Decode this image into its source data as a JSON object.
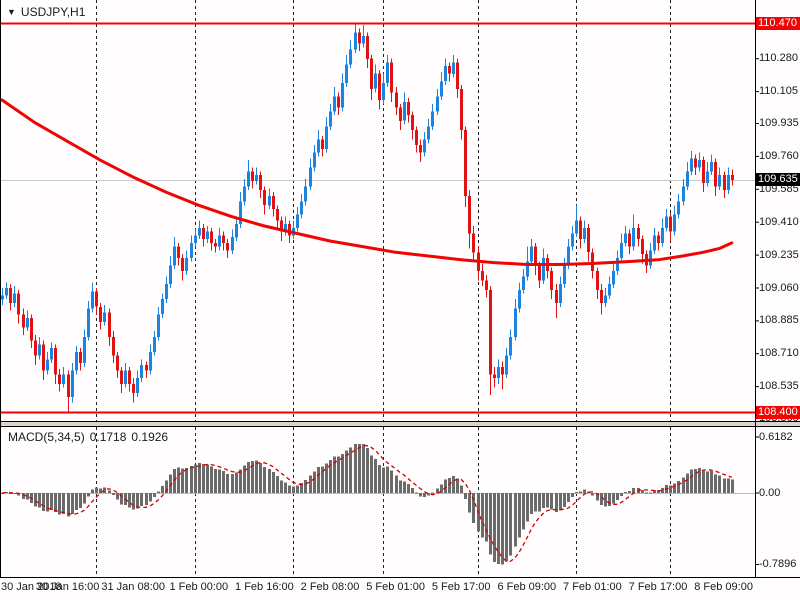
{
  "header": {
    "symbol": "USDJPY,H1",
    "dropdown_icon": "▼"
  },
  "colors": {
    "background": "#fffdfd",
    "bull": "#1b84e0",
    "bear": "#e11212",
    "ma_line": "#f00404",
    "hline": "#f00404",
    "hline_tag_bg": "#f00404",
    "current_tag_bg": "#000000",
    "histogram": "#6b6b6b",
    "signal_line": "#d40000",
    "separator": "#222222",
    "current_price_line": "#c8c8c8",
    "axis_text": "#1a1a1a"
  },
  "chart_data": {
    "type": "candlestick",
    "symbol": "USDJPY",
    "timeframe": "H1",
    "levels": {
      "upper": 110.47,
      "upper_label": "110.470",
      "lower": 108.4,
      "lower_label": "108.400",
      "current": 109.635,
      "current_label": "109.635"
    },
    "price_axis_ticks": [
      "110.455",
      "110.280",
      "110.105",
      "109.935",
      "109.760",
      "109.585",
      "109.410",
      "109.235",
      "109.060",
      "108.885",
      "108.710",
      "108.535",
      "108.365"
    ],
    "time_labels": [
      {
        "i": 1,
        "text": "30 Jan 2018",
        "align": "left"
      },
      {
        "i": 16,
        "text": "30 Jan 16:00"
      },
      {
        "i": 32,
        "text": "31 Jan 08:00"
      },
      {
        "i": 48,
        "text": "1 Feb 00:00"
      },
      {
        "i": 64,
        "text": "1 Feb 16:00"
      },
      {
        "i": 80,
        "text": "2 Feb 08:00"
      },
      {
        "i": 96,
        "text": "5 Feb 01:00"
      },
      {
        "i": 112,
        "text": "5 Feb 17:00"
      },
      {
        "i": 128,
        "text": "6 Feb 09:00"
      },
      {
        "i": 144,
        "text": "7 Feb 01:00"
      },
      {
        "i": 160,
        "text": "7 Feb 17:00"
      },
      {
        "i": 176,
        "text": "8 Feb 09:00"
      }
    ],
    "day_separators": [
      23,
      47,
      71,
      93,
      116,
      140,
      163
    ],
    "first_open": 109.0,
    "candles": [
      [
        109.02,
        0.04,
        0.03
      ],
      [
        109.06,
        0.03,
        0.02
      ],
      [
        108.98,
        0.02,
        0.04
      ],
      [
        109.03,
        0.04,
        0.02
      ],
      [
        108.92,
        0.02,
        0.05
      ],
      [
        108.85,
        0.03,
        0.04
      ],
      [
        108.9,
        0.04,
        0.02
      ],
      [
        108.78,
        0.02,
        0.04
      ],
      [
        108.7,
        0.03,
        0.05
      ],
      [
        108.76,
        0.04,
        0.02
      ],
      [
        108.62,
        0.02,
        0.05
      ],
      [
        108.68,
        0.04,
        0.02
      ],
      [
        108.74,
        0.03,
        0.02
      ],
      [
        108.6,
        0.02,
        0.05
      ],
      [
        108.55,
        0.03,
        0.04
      ],
      [
        108.6,
        0.04,
        0.02
      ],
      [
        108.48,
        0.02,
        0.08
      ],
      [
        108.62,
        0.04,
        0.03
      ],
      [
        108.72,
        0.03,
        0.02
      ],
      [
        108.66,
        0.02,
        0.04
      ],
      [
        108.8,
        0.04,
        0.02
      ],
      [
        108.95,
        0.04,
        0.02
      ],
      [
        109.04,
        0.05,
        0.02
      ],
      [
        108.96,
        0.02,
        0.04
      ],
      [
        108.88,
        0.02,
        0.04
      ],
      [
        108.93,
        0.04,
        0.02
      ],
      [
        108.8,
        0.02,
        0.05
      ],
      [
        108.7,
        0.03,
        0.04
      ],
      [
        108.62,
        0.02,
        0.04
      ],
      [
        108.55,
        0.02,
        0.05
      ],
      [
        108.62,
        0.04,
        0.02
      ],
      [
        108.55,
        0.02,
        0.04
      ],
      [
        108.5,
        0.03,
        0.05
      ],
      [
        108.58,
        0.04,
        0.02
      ],
      [
        108.65,
        0.03,
        0.02
      ],
      [
        108.62,
        0.02,
        0.04
      ],
      [
        108.72,
        0.04,
        0.02
      ],
      [
        108.8,
        0.03,
        0.02
      ],
      [
        108.92,
        0.04,
        0.02
      ],
      [
        109.0,
        0.03,
        0.02
      ],
      [
        109.08,
        0.04,
        0.02
      ],
      [
        109.18,
        0.05,
        0.02
      ],
      [
        109.28,
        0.05,
        0.02
      ],
      [
        109.22,
        0.02,
        0.04
      ],
      [
        109.15,
        0.02,
        0.05
      ],
      [
        109.22,
        0.04,
        0.02
      ],
      [
        109.3,
        0.04,
        0.02
      ],
      [
        109.34,
        0.03,
        0.02
      ],
      [
        109.38,
        0.04,
        0.02
      ],
      [
        109.32,
        0.02,
        0.04
      ],
      [
        109.36,
        0.03,
        0.02
      ],
      [
        109.3,
        0.02,
        0.04
      ],
      [
        109.28,
        0.02,
        0.03
      ],
      [
        109.34,
        0.04,
        0.02
      ],
      [
        109.3,
        0.02,
        0.04
      ],
      [
        109.26,
        0.02,
        0.04
      ],
      [
        109.33,
        0.04,
        0.02
      ],
      [
        109.4,
        0.04,
        0.02
      ],
      [
        109.52,
        0.05,
        0.02
      ],
      [
        109.6,
        0.04,
        0.02
      ],
      [
        109.68,
        0.06,
        0.02
      ],
      [
        109.63,
        0.02,
        0.04
      ],
      [
        109.66,
        0.04,
        0.02
      ],
      [
        109.58,
        0.02,
        0.04
      ],
      [
        109.5,
        0.02,
        0.05
      ],
      [
        109.55,
        0.04,
        0.02
      ],
      [
        109.48,
        0.02,
        0.04
      ],
      [
        109.42,
        0.02,
        0.04
      ],
      [
        109.36,
        0.02,
        0.05
      ],
      [
        109.4,
        0.04,
        0.02
      ],
      [
        109.34,
        0.02,
        0.04
      ],
      [
        109.38,
        0.04,
        0.02
      ],
      [
        109.45,
        0.04,
        0.02
      ],
      [
        109.52,
        0.04,
        0.02
      ],
      [
        109.6,
        0.04,
        0.02
      ],
      [
        109.7,
        0.05,
        0.02
      ],
      [
        109.78,
        0.04,
        0.02
      ],
      [
        109.85,
        0.05,
        0.02
      ],
      [
        109.8,
        0.02,
        0.04
      ],
      [
        109.92,
        0.05,
        0.02
      ],
      [
        110.0,
        0.04,
        0.02
      ],
      [
        110.08,
        0.05,
        0.02
      ],
      [
        110.02,
        0.02,
        0.04
      ],
      [
        110.15,
        0.05,
        0.02
      ],
      [
        110.25,
        0.05,
        0.02
      ],
      [
        110.33,
        0.05,
        0.02
      ],
      [
        110.42,
        0.05,
        0.02
      ],
      [
        110.36,
        0.02,
        0.04
      ],
      [
        110.4,
        0.06,
        0.02
      ],
      [
        110.28,
        0.02,
        0.05
      ],
      [
        110.12,
        0.02,
        0.06
      ],
      [
        110.2,
        0.05,
        0.02
      ],
      [
        110.06,
        0.02,
        0.05
      ],
      [
        110.15,
        0.05,
        0.02
      ],
      [
        110.26,
        0.04,
        0.02
      ],
      [
        110.1,
        0.02,
        0.05
      ],
      [
        110.02,
        0.03,
        0.04
      ],
      [
        109.95,
        0.02,
        0.05
      ],
      [
        110.05,
        0.05,
        0.02
      ],
      [
        109.98,
        0.02,
        0.04
      ],
      [
        109.9,
        0.02,
        0.05
      ],
      [
        109.82,
        0.02,
        0.04
      ],
      [
        109.78,
        0.03,
        0.05
      ],
      [
        109.85,
        0.04,
        0.02
      ],
      [
        109.92,
        0.04,
        0.02
      ],
      [
        110.0,
        0.04,
        0.02
      ],
      [
        110.08,
        0.04,
        0.02
      ],
      [
        110.16,
        0.05,
        0.02
      ],
      [
        110.24,
        0.04,
        0.02
      ],
      [
        110.2,
        0.02,
        0.04
      ],
      [
        110.26,
        0.04,
        0.02
      ],
      [
        110.12,
        0.02,
        0.05
      ],
      [
        109.9,
        0.02,
        0.05
      ],
      [
        109.55,
        0.02,
        0.06
      ],
      [
        109.35,
        0.03,
        0.08
      ],
      [
        109.25,
        0.04,
        0.04
      ],
      [
        109.15,
        0.03,
        0.05
      ],
      [
        109.1,
        0.04,
        0.03
      ],
      [
        109.05,
        0.03,
        0.04
      ],
      [
        108.6,
        0.02,
        0.11
      ],
      [
        108.58,
        0.04,
        0.05
      ],
      [
        108.64,
        0.04,
        0.03
      ],
      [
        108.6,
        0.03,
        0.08
      ],
      [
        108.7,
        0.04,
        0.02
      ],
      [
        108.8,
        0.04,
        0.02
      ],
      [
        108.95,
        0.05,
        0.02
      ],
      [
        109.05,
        0.04,
        0.02
      ],
      [
        109.12,
        0.04,
        0.02
      ],
      [
        109.2,
        0.08,
        0.02
      ],
      [
        109.28,
        0.04,
        0.02
      ],
      [
        109.18,
        0.02,
        0.05
      ],
      [
        109.1,
        0.02,
        0.04
      ],
      [
        109.22,
        0.05,
        0.02
      ],
      [
        109.15,
        0.02,
        0.04
      ],
      [
        109.05,
        0.02,
        0.05
      ],
      [
        108.98,
        0.03,
        0.08
      ],
      [
        109.08,
        0.04,
        0.02
      ],
      [
        109.18,
        0.04,
        0.02
      ],
      [
        109.28,
        0.04,
        0.02
      ],
      [
        109.35,
        0.04,
        0.02
      ],
      [
        109.42,
        0.08,
        0.02
      ],
      [
        109.32,
        0.02,
        0.05
      ],
      [
        109.38,
        0.04,
        0.02
      ],
      [
        109.25,
        0.02,
        0.05
      ],
      [
        109.15,
        0.02,
        0.04
      ],
      [
        109.05,
        0.02,
        0.05
      ],
      [
        108.98,
        0.03,
        0.06
      ],
      [
        109.02,
        0.04,
        0.02
      ],
      [
        109.08,
        0.04,
        0.02
      ],
      [
        109.15,
        0.04,
        0.02
      ],
      [
        109.22,
        0.04,
        0.02
      ],
      [
        109.3,
        0.05,
        0.02
      ],
      [
        109.35,
        0.04,
        0.02
      ],
      [
        109.28,
        0.02,
        0.04
      ],
      [
        109.38,
        0.07,
        0.02
      ],
      [
        109.32,
        0.02,
        0.04
      ],
      [
        109.24,
        0.02,
        0.05
      ],
      [
        109.18,
        0.02,
        0.04
      ],
      [
        109.26,
        0.04,
        0.02
      ],
      [
        109.34,
        0.04,
        0.02
      ],
      [
        109.3,
        0.02,
        0.04
      ],
      [
        109.38,
        0.05,
        0.02
      ],
      [
        109.44,
        0.04,
        0.02
      ],
      [
        109.36,
        0.02,
        0.05
      ],
      [
        109.45,
        0.05,
        0.02
      ],
      [
        109.52,
        0.04,
        0.02
      ],
      [
        109.6,
        0.04,
        0.02
      ],
      [
        109.68,
        0.05,
        0.02
      ],
      [
        109.75,
        0.04,
        0.02
      ],
      [
        109.7,
        0.02,
        0.04
      ],
      [
        109.74,
        0.04,
        0.02
      ],
      [
        109.62,
        0.02,
        0.05
      ],
      [
        109.68,
        0.05,
        0.02
      ],
      [
        109.73,
        0.04,
        0.02
      ],
      [
        109.6,
        0.02,
        0.05
      ],
      [
        109.66,
        0.04,
        0.02
      ],
      [
        109.58,
        0.02,
        0.04
      ],
      [
        109.66,
        0.04,
        0.02
      ],
      [
        109.635,
        0.03,
        0.03
      ]
    ],
    "ma_points": [
      [
        0,
        110.06
      ],
      [
        8,
        109.94
      ],
      [
        16,
        109.84
      ],
      [
        24,
        109.74
      ],
      [
        32,
        109.65
      ],
      [
        40,
        109.57
      ],
      [
        48,
        109.5
      ],
      [
        56,
        109.44
      ],
      [
        64,
        109.39
      ],
      [
        72,
        109.35
      ],
      [
        80,
        109.31
      ],
      [
        88,
        109.28
      ],
      [
        96,
        109.25
      ],
      [
        104,
        109.23
      ],
      [
        112,
        109.21
      ],
      [
        120,
        109.195
      ],
      [
        128,
        109.185
      ],
      [
        136,
        109.185
      ],
      [
        144,
        109.19
      ],
      [
        152,
        109.2
      ],
      [
        160,
        109.21
      ],
      [
        166,
        109.23
      ],
      [
        171,
        109.25
      ],
      [
        175,
        109.27
      ],
      [
        178,
        109.3
      ]
    ],
    "macd": {
      "label": "MACD(5,34,5)",
      "params": [
        5,
        34,
        5
      ],
      "main_value": "0.1718",
      "signal_value": "0.1926",
      "axis_ticks": [
        "0.6182",
        "0.00",
        "-0.7896"
      ]
    }
  }
}
